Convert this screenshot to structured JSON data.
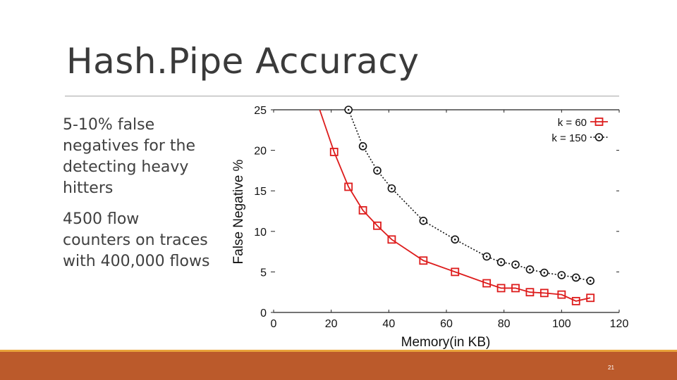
{
  "slide": {
    "title": "Hash.Pipe Accuracy",
    "bullets": [
      "5-10% false negatives for the detecting heavy hitters",
      "4500 flow counters on traces with 400,000 flows"
    ],
    "page_number": "21"
  },
  "colors": {
    "footer_bar": "#bb5a2b",
    "footer_line": "#e8a23a",
    "series_k60": "#dd1c1c",
    "series_k150": "#111111"
  },
  "chart_data": {
    "type": "line",
    "xlabel": "Memory(in KB)",
    "ylabel": "False Negative %",
    "xlim": [
      0,
      120
    ],
    "ylim": [
      0,
      25
    ],
    "x_ticks": [
      "0",
      "20",
      "40",
      "60",
      "80",
      "100",
      "120"
    ],
    "y_ticks": [
      "0",
      "5",
      "10",
      "15",
      "20",
      "25"
    ],
    "grid": false,
    "legend_position": "top-right",
    "series": [
      {
        "name": "k = 60",
        "marker": "square",
        "line": "solid",
        "x": [
          21,
          26,
          31,
          36,
          41,
          52,
          63,
          74,
          79,
          84,
          89,
          94,
          100,
          105,
          110
        ],
        "y": [
          19.8,
          15.5,
          12.6,
          10.7,
          9.0,
          6.4,
          5.0,
          3.6,
          3.0,
          3.0,
          2.5,
          2.4,
          2.2,
          1.4,
          1.8
        ]
      },
      {
        "name": "k = 150",
        "marker": "circle",
        "line": "dotted",
        "x": [
          26,
          31,
          36,
          41,
          52,
          63,
          74,
          79,
          84,
          89,
          94,
          100,
          105,
          110
        ],
        "y": [
          25.0,
          20.5,
          17.5,
          15.3,
          11.3,
          9.0,
          6.9,
          6.2,
          5.9,
          5.3,
          4.9,
          4.6,
          4.3,
          3.9
        ]
      }
    ],
    "curve_head": {
      "series": "k = 60",
      "x": [
        16,
        21
      ],
      "y": [
        25.0,
        19.8
      ]
    }
  }
}
